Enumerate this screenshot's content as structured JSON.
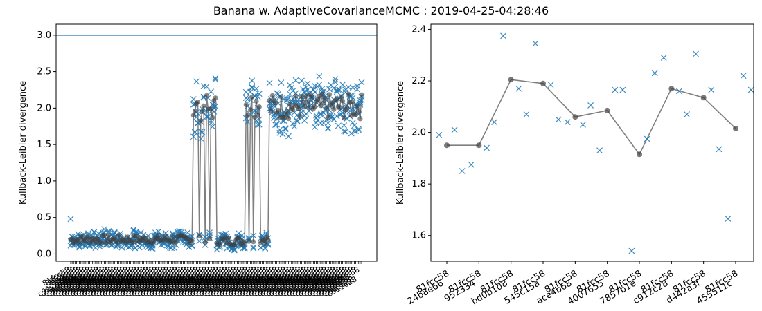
{
  "title": "Banana w. AdaptiveCovarianceMCMC : 2019-04-25-04:28:46",
  "colors": {
    "marker": "#1f77b4",
    "line": "#7f7f7f",
    "mean": "#404040",
    "axis": "#000000"
  },
  "chart_data": [
    {
      "type": "scatter",
      "ylabel": "Kullback-Leibler divergence",
      "xlabel": "",
      "ylim": [
        -0.1,
        3.15
      ],
      "yticks": [
        0.0,
        0.5,
        1.0,
        1.5,
        2.0,
        2.5,
        3.0
      ],
      "ytick_labels": [
        "0.0",
        "0.5",
        "1.0",
        "1.5",
        "2.0",
        "2.5",
        "3.0"
      ],
      "reference_line": 3.0,
      "n_runs": 200,
      "x_tick_labels_note": "dense overlapping run labels",
      "segments": [
        {
          "from": 0,
          "to": 83,
          "level": 0.2
        },
        {
          "from": 84,
          "to": 99,
          "level": 2.0,
          "dips": [
            88,
            92,
            95
          ]
        },
        {
          "from": 100,
          "to": 119,
          "level": 0.18
        },
        {
          "from": 120,
          "to": 129,
          "level": 2.05,
          "dips": [
            122,
            125
          ]
        },
        {
          "from": 130,
          "to": 135,
          "level": 0.2
        },
        {
          "from": 136,
          "to": 199,
          "level": 2.02
        }
      ],
      "grid": false
    },
    {
      "type": "scatter",
      "ylabel": "Kullback-Leibler divergence",
      "xlabel": "",
      "ylim": [
        1.5,
        2.42
      ],
      "yticks": [
        1.6,
        1.8,
        2.0,
        2.2,
        2.4
      ],
      "ytick_labels": [
        "1.6",
        "1.8",
        "2.0",
        "2.2",
        "2.4"
      ],
      "categories": [
        "81fcc58\n24b8e66",
        "81fcc58\n952334",
        "81fcc58\nbd0b1d8",
        "81fcc58\n545c15a",
        "81fcc58\nace4b68",
        "81fcc58\n4007655",
        "81fcc58\n7857b1e",
        "81fcc58\nc912c28",
        "81fcc58\nd442a3f",
        "81fcc58\n455511c"
      ],
      "means": [
        1.95,
        1.95,
        2.205,
        2.19,
        2.06,
        2.085,
        1.915,
        2.17,
        2.135,
        2.015
      ],
      "points": [
        [
          1.99,
          2.01,
          1.85
        ],
        [
          1.875,
          1.94,
          2.04
        ],
        [
          2.375,
          2.17,
          2.07
        ],
        [
          2.345,
          2.185,
          2.05
        ],
        [
          2.04,
          2.03,
          2.105
        ],
        [
          1.93,
          2.165,
          2.165
        ],
        [
          1.54,
          1.975,
          2.23
        ],
        [
          2.29,
          2.16,
          2.07
        ],
        [
          2.305,
          2.165,
          1.935
        ],
        [
          1.665,
          2.22,
          2.165
        ]
      ],
      "grid": false
    }
  ]
}
